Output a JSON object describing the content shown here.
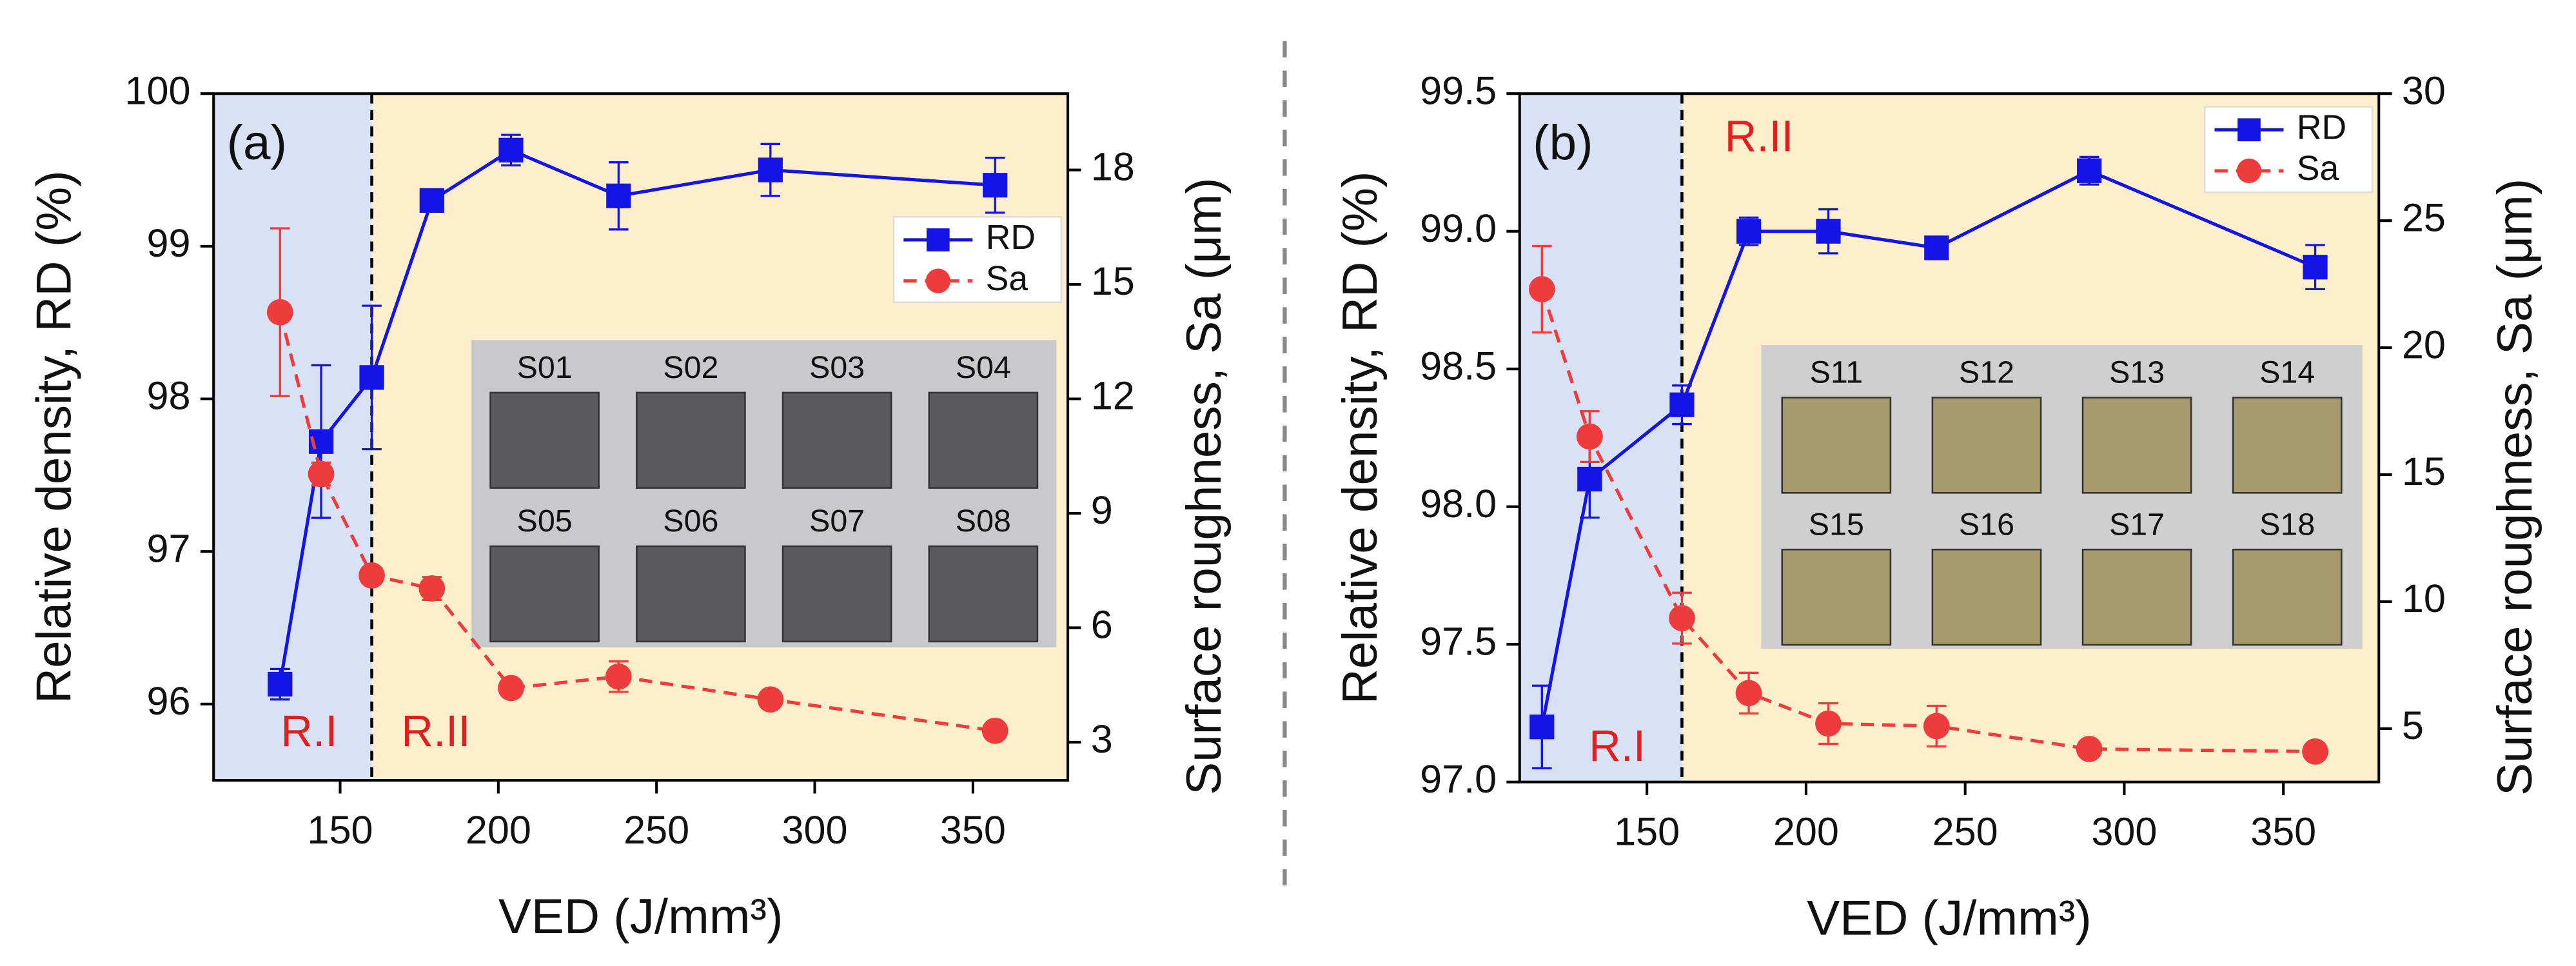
{
  "chart_data": [
    {
      "type": "line",
      "panel_label": "(a)",
      "x_label": "VED (J/mm³)",
      "y_label": "Relative density, RD (%)",
      "y2_label": "Surface roughness, Sa (μm)",
      "x": [
        131,
        144,
        160,
        179,
        204,
        238,
        286,
        357
      ],
      "series": [
        {
          "name": "RD",
          "color": "#1414e6",
          "marker": "square",
          "line_style": "solid",
          "values": [
            96.13,
            97.72,
            98.14,
            99.3,
            99.63,
            99.33,
            99.5,
            99.4
          ],
          "errors": [
            0.1,
            0.5,
            0.47,
            0.05,
            0.1,
            0.22,
            0.17,
            0.18
          ]
        },
        {
          "name": "Sa",
          "color": "#ee3b3b",
          "marker": "circle",
          "line_style": "dashed",
          "axis": "y2",
          "values": [
            14.27,
            10.03,
            7.37,
            7.03,
            4.42,
            4.72,
            4.12,
            3.3
          ],
          "errors": [
            2.2,
            0.3,
            0.2,
            0.3,
            0.2,
            0.4,
            0.2,
            0.1
          ]
        }
      ],
      "xlim": [
        110,
        380
      ],
      "xticks": [
        150,
        200,
        250,
        300,
        350
      ],
      "ylim": [
        95.5,
        100
      ],
      "yticks": [
        96,
        97,
        98,
        99,
        100
      ],
      "y2lim": [
        2,
        20
      ],
      "y2ticks": [
        3,
        6,
        9,
        12,
        15,
        18
      ],
      "boundary": 160,
      "regions": [
        {
          "label": "R.I",
          "color": "#d9e1f4"
        },
        {
          "label": "R.II",
          "color": "#fdefcb"
        }
      ],
      "legend": "right",
      "inset_labels": [
        "S01",
        "S02",
        "S03",
        "S04",
        "S05",
        "S06",
        "S07",
        "S08"
      ]
    },
    {
      "type": "line",
      "panel_label": "(b)",
      "x_label": "VED (J/mm³)",
      "y_label": "Relative density, RD (%)",
      "y2_label": "Surface roughness, Sa (μm)",
      "x": [
        117,
        132,
        161,
        182,
        207,
        241,
        289,
        360
      ],
      "series": [
        {
          "name": "RD",
          "color": "#1414e6",
          "marker": "square",
          "line_style": "solid",
          "values": [
            97.2,
            98.1,
            98.37,
            99.0,
            99.0,
            98.94,
            99.22,
            98.87
          ],
          "errors": [
            0.15,
            0.14,
            0.07,
            0.05,
            0.08,
            0.04,
            0.05,
            0.08
          ]
        },
        {
          "name": "Sa",
          "color": "#ee3b3b",
          "marker": "circle",
          "line_style": "dashed",
          "axis": "y2",
          "values": [
            22.3,
            16.5,
            9.35,
            6.4,
            5.2,
            5.1,
            4.2,
            4.1
          ],
          "errors": [
            1.7,
            1.0,
            1.0,
            0.8,
            0.8,
            0.8,
            0.3,
            0.3
          ]
        }
      ],
      "xlim": [
        110,
        380
      ],
      "xticks": [
        150,
        200,
        250,
        300,
        350
      ],
      "ylim": [
        97,
        99.5
      ],
      "yticks": [
        {
          "value": 97,
          "label": "97.0"
        },
        97.5,
        {
          "value": 98,
          "label": "98.0"
        },
        98.5,
        {
          "value": 99,
          "label": "99.0"
        },
        99.5
      ],
      "y2lim": [
        2.9,
        30
      ],
      "y2ticks": [
        5,
        10,
        15,
        20,
        25,
        30
      ],
      "boundary": 161,
      "regions": [
        {
          "label": "R.I",
          "color": "#d9e1f4"
        },
        {
          "label": "R.II",
          "color": "#fdefcb"
        }
      ],
      "legend": "upper right",
      "inset_labels": [
        "S11",
        "S12",
        "S13",
        "S14",
        "S15",
        "S16",
        "S17",
        "S18"
      ]
    }
  ]
}
